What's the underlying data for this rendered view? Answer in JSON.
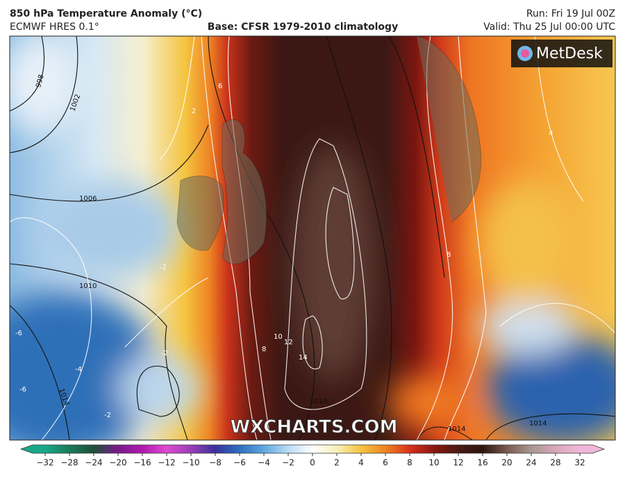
{
  "header": {
    "title": "850 hPa Temperature Anomaly (°C)",
    "model": "ECMWF HRES 0.1°",
    "base": "Base: CFSR 1979-2010 climatology",
    "run": "Run: Fri 19 Jul 00Z",
    "valid": "Valid: Thu 25 Jul 00:00 UTC"
  },
  "logo": "MetDesk",
  "watermark": "WXCHARTS.COM",
  "isobar_labels": [
    "998",
    "1002",
    "1006",
    "1010",
    "1014",
    "1010",
    "1014",
    "1014"
  ],
  "anomaly_labels": [
    "6",
    "2",
    "-2",
    "-2",
    "-4",
    "-6",
    "-6",
    "-2",
    "8",
    "10",
    "12",
    "14",
    "8",
    "4"
  ],
  "colorbar": {
    "ticks": [
      {
        "value": -32,
        "label": "−32"
      },
      {
        "value": -28,
        "label": "−28"
      },
      {
        "value": -24,
        "label": "−24"
      },
      {
        "value": -20,
        "label": "−20"
      },
      {
        "value": -16,
        "label": "−16"
      },
      {
        "value": -12,
        "label": "−12"
      },
      {
        "value": -10,
        "label": "−10"
      },
      {
        "value": -8,
        "label": "−8"
      },
      {
        "value": -6,
        "label": "−6"
      },
      {
        "value": -4,
        "label": "−4"
      },
      {
        "value": -2,
        "label": "−2"
      },
      0,
      2,
      4,
      6,
      8,
      10,
      12,
      16,
      20,
      24,
      28,
      32
    ]
  }
}
